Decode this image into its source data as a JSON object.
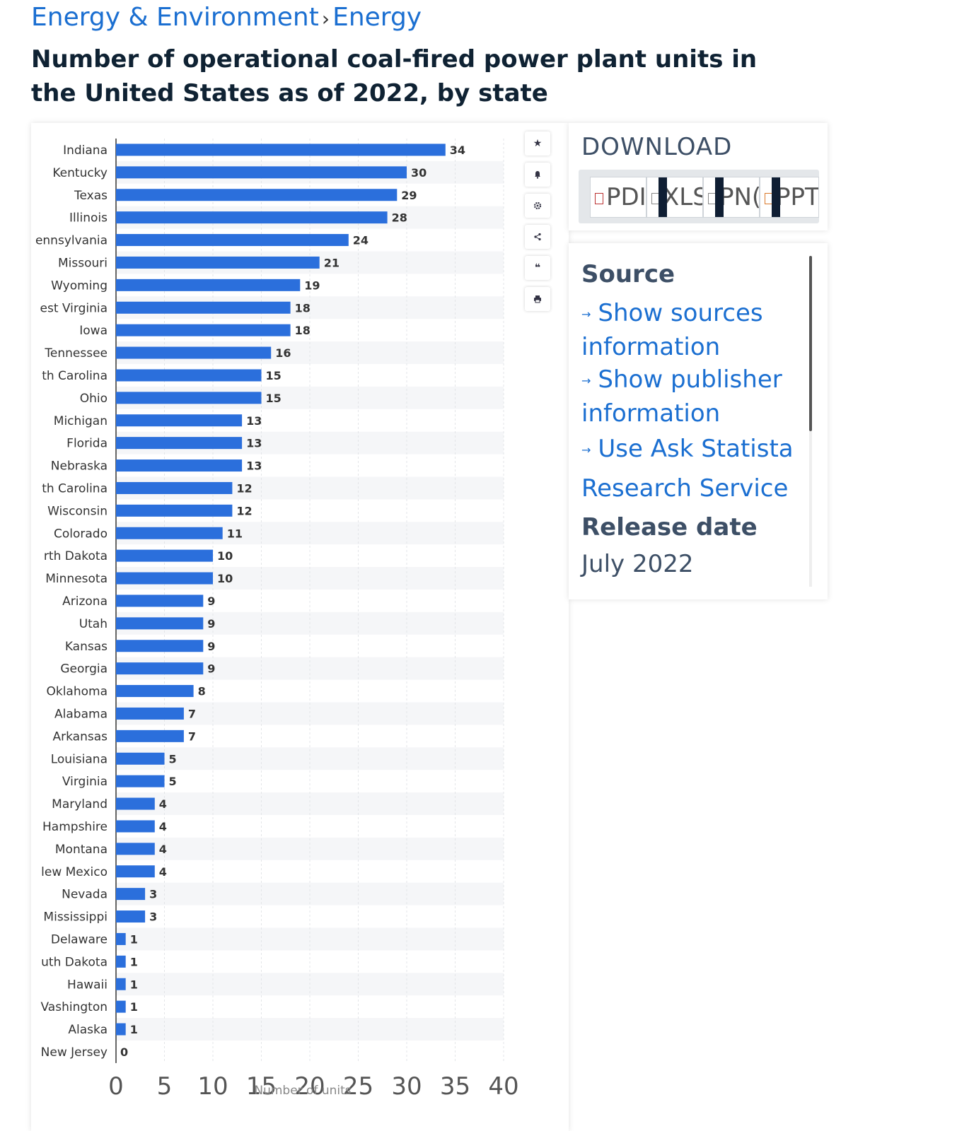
{
  "breadcrumb": {
    "parent": "Energy & Environment",
    "separator": "›",
    "current": "Energy"
  },
  "title": "Number of operational coal-fired power plant units in the United States as of 2022, by state",
  "toolbar": {
    "icons": [
      "star-icon",
      "bell-icon",
      "gear-icon",
      "share-icon",
      "quote-icon",
      "print-icon"
    ]
  },
  "download": {
    "title": "DOWNLOAD",
    "buttons": [
      {
        "label": "PDI",
        "icon": "pdf-file-icon"
      },
      {
        "label": "XLS",
        "icon": "xls-file-icon"
      },
      {
        "label": "PN(",
        "icon": "png-file-icon"
      },
      {
        "label": "PPT",
        "icon": "ppt-file-icon"
      }
    ]
  },
  "info": {
    "source_heading": "Source",
    "links": [
      "Show sources information",
      "Show publisher information",
      "Use Ask Statista Research Service"
    ],
    "release_heading": "Release date",
    "release_value": "July 2022"
  },
  "colors": {
    "bar": "#2b6fdc",
    "link": "#1b6fd1",
    "stripe": "#f5f6f8"
  },
  "chart_data": {
    "type": "bar",
    "orientation": "horizontal",
    "categories": [
      "Indiana",
      "Kentucky",
      "Texas",
      "Illinois",
      "ennsylvania",
      "Missouri",
      "Wyoming",
      "est Virginia",
      "Iowa",
      "Tennessee",
      "th Carolina",
      "Ohio",
      "Michigan",
      "Florida",
      "Nebraska",
      "th Carolina",
      "Wisconsin",
      "Colorado",
      "rth Dakota",
      "Minnesota",
      "Arizona",
      "Utah",
      "Kansas",
      "Georgia",
      "Oklahoma",
      "Alabama",
      "Arkansas",
      "Louisiana",
      "Virginia",
      "Maryland",
      "Hampshire",
      "Montana",
      "lew Mexico",
      "Nevada",
      "Mississippi",
      "Delaware",
      "uth Dakota",
      "Hawaii",
      "Vashington",
      "Alaska",
      "New Jersey"
    ],
    "values": [
      34,
      30,
      29,
      28,
      24,
      21,
      19,
      18,
      18,
      16,
      15,
      15,
      13,
      13,
      13,
      12,
      12,
      11,
      10,
      10,
      9,
      9,
      9,
      9,
      8,
      7,
      7,
      5,
      5,
      4,
      4,
      4,
      4,
      3,
      3,
      1,
      1,
      1,
      1,
      1,
      0
    ],
    "xlabel": "Number of units",
    "xlim": [
      0,
      40
    ],
    "xticks": [
      0,
      5,
      10,
      15,
      20,
      25,
      30,
      35,
      40
    ],
    "grid": true,
    "data_labels": true
  }
}
